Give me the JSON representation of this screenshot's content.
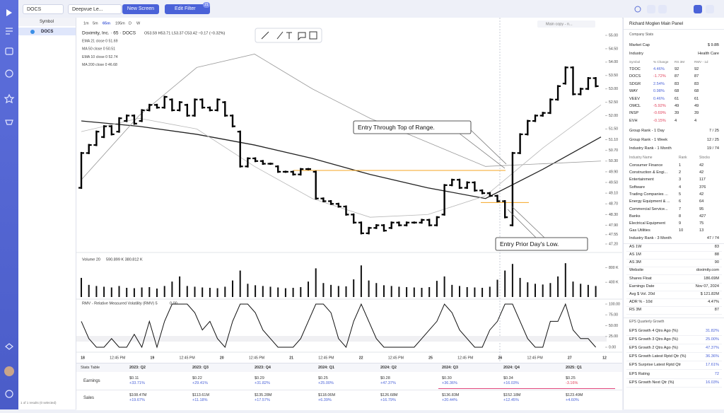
{
  "tabs": {
    "symbol": "DOCS",
    "screen": "Deepvue Le...",
    "new_screen": "New Screen",
    "edit_filter": "Edit Filter",
    "filter_count": "21"
  },
  "watchlist": {
    "header": "Symbol",
    "rows": [
      "DOCS"
    ],
    "footer": "1 of 1 results (0 selected)"
  },
  "chart": {
    "type": "ohlc",
    "timeframes": [
      "1m",
      "5m",
      "65m",
      "195m",
      "D",
      "W"
    ],
    "layout_name": "Main copy - n...",
    "title": "Doximity, Inc. · 65 · DOCS",
    "ohlc": "O53.59 H53.71 L53.37 C53.42 −0.17 (−0.32%)",
    "indicators": [
      "EMA 21 close 0  51.69",
      "MA 50 close 0  50.51",
      "EMA 10 close 0  52.74",
      "MA 200 close 0  46.68"
    ],
    "ylim": [
      47.2,
      55
    ],
    "yticks": [
      {
        "value": 55,
        "label": "55.00"
      },
      {
        "value": 54.5,
        "label": "54.50"
      },
      {
        "value": 54,
        "label": "54.00"
      },
      {
        "value": 53.5,
        "label": "53.50"
      },
      {
        "value": 53,
        "label": "53.00"
      },
      {
        "value": 52.5,
        "label": "52.50"
      },
      {
        "value": 52,
        "label": "52.00"
      },
      {
        "value": 51.5,
        "label": "51.50"
      },
      {
        "value": 51.1,
        "label": "51.10"
      },
      {
        "value": 50.7,
        "label": "50.70"
      },
      {
        "value": 50.3,
        "label": "50.30"
      },
      {
        "value": 49.9,
        "label": "49.90"
      },
      {
        "value": 49.5,
        "label": "49.50"
      },
      {
        "value": 49.1,
        "label": "49.10"
      },
      {
        "value": 48.7,
        "label": "48.70"
      },
      {
        "value": 48.3,
        "label": "48.30"
      },
      {
        "value": 47.9,
        "label": "47.90"
      },
      {
        "value": 47.55,
        "label": "47.55"
      },
      {
        "value": 47.2,
        "label": "47.20"
      }
    ],
    "bars": [
      [
        49.3,
        50.6
      ],
      [
        50.6,
        50.9
      ],
      [
        50.9,
        51.4
      ],
      [
        51.2,
        51.6
      ],
      [
        51.6,
        51.3
      ],
      [
        51.4,
        51.9
      ],
      [
        51.8,
        52.0
      ],
      [
        52.0,
        51.7
      ],
      [
        51.8,
        52.2
      ],
      [
        52.2,
        52.4
      ],
      [
        52.4,
        52.3
      ],
      [
        52.3,
        52.7
      ],
      [
        52.6,
        52.2
      ],
      [
        52.2,
        52.5
      ],
      [
        52.4,
        52.0
      ],
      [
        52.0,
        52.6
      ],
      [
        52.6,
        52.3
      ],
      [
        52.3,
        52.2
      ],
      [
        52.2,
        52.6
      ],
      [
        52.5,
        52.0
      ],
      [
        52.0,
        51.6
      ],
      [
        51.4,
        50.1
      ],
      [
        50.1,
        50.4
      ],
      [
        50.4,
        50.3
      ],
      [
        50.3,
        50.2
      ],
      [
        50.2,
        50.2
      ],
      [
        50.1,
        49.9
      ],
      [
        49.9,
        49.9
      ],
      [
        49.9,
        49.8
      ],
      [
        49.8,
        50.0
      ],
      [
        50.0,
        50.0
      ],
      [
        49.9,
        48.9
      ],
      [
        48.9,
        48.8
      ],
      [
        48.8,
        48.7
      ],
      [
        48.7,
        48.6
      ],
      [
        48.6,
        48.3
      ],
      [
        48.3,
        48.0
      ],
      [
        48.0,
        47.6
      ],
      [
        47.6,
        47.8
      ],
      [
        47.8,
        47.9
      ],
      [
        47.9,
        47.7
      ],
      [
        47.8,
        48.0
      ],
      [
        48.0,
        47.9
      ],
      [
        47.9,
        48.0
      ],
      [
        48.0,
        48.0
      ],
      [
        48.0,
        48.1
      ],
      [
        48.1,
        47.9
      ],
      [
        47.9,
        48.2
      ],
      [
        48.3,
        49.4
      ],
      [
        49.4,
        49.6
      ],
      [
        49.6,
        49.3
      ],
      [
        49.3,
        49.5
      ],
      [
        49.5,
        49.2
      ],
      [
        49.2,
        49.1
      ],
      [
        49.1,
        49.0
      ],
      [
        49.0,
        48.8
      ],
      [
        48.8,
        48.2
      ],
      [
        47.9,
        50.6
      ],
      [
        50.6,
        51.3
      ],
      [
        51.3,
        51.8
      ],
      [
        51.8,
        52.0
      ],
      [
        52.0,
        52.1
      ],
      [
        52.1,
        52.6
      ],
      [
        52.6,
        53.1
      ],
      [
        53.2,
        53.8
      ],
      [
        53.8,
        52.8
      ],
      [
        52.8,
        53.0
      ],
      [
        53.0,
        53.4
      ],
      [
        53.4,
        53.1
      ]
    ],
    "ma_lines": [
      {
        "color": "#222222",
        "width": 1.3,
        "values": [
          51.8,
          51.6,
          51.3,
          50.9,
          50.4,
          49.8,
          49.3,
          48.9,
          50.0,
          51.2
        ]
      },
      {
        "color": "#9a9a9a",
        "width": 0.8,
        "values": [
          49.6,
          52.0,
          53.8,
          54.3,
          53.0,
          51.9,
          51.0,
          50.1,
          50.2,
          50.3
        ]
      },
      {
        "color": "#b8b8b8",
        "width": 0.8,
        "values": [
          51.4,
          51.9,
          51.5,
          50.1,
          48.9,
          48.2,
          48.3,
          49.0,
          50.8,
          52.4
        ]
      }
    ],
    "levels": [
      49.95,
      48.75
    ],
    "annotations": [
      "Entry Through Top of Range.",
      "Entry Prior Day's Low."
    ],
    "x_labels": [
      "18",
      "12:45 PM",
      "19",
      "12:45 PM",
      "20",
      "12:45 PM",
      "21",
      "12:45 PM",
      "22",
      "12:45 PM",
      "25",
      "12:45 PM",
      "26",
      "12:45 PM",
      "27",
      "12"
    ],
    "volume": {
      "label": "Volume 20",
      "values_text": "590.899 K  380.812 K",
      "ylim": [
        0,
        1000
      ],
      "yticks": [
        {
          "value": 800,
          "label": "800 K"
        },
        {
          "value": 400,
          "label": "400 K"
        }
      ],
      "values": [
        520,
        330,
        300,
        280,
        260,
        300,
        250,
        240,
        260,
        270,
        230,
        300,
        420,
        560,
        300,
        280,
        260,
        250,
        240,
        280,
        450,
        720,
        360,
        320,
        300,
        280,
        260,
        240,
        250,
        270,
        420,
        780,
        380,
        330,
        300,
        290,
        480,
        860,
        450,
        380,
        320,
        300,
        280,
        270,
        260,
        250,
        270,
        440,
        560,
        330,
        300,
        270,
        260,
        250,
        280,
        470,
        720,
        900,
        520,
        400,
        360,
        340,
        380,
        560,
        920,
        420,
        360,
        330,
        300
      ]
    },
    "rmv": {
      "label": "RMV - Relative Measured Volatility (RMV) 5",
      "value_text": "0.00",
      "ylim": [
        0,
        100
      ],
      "yticks": [
        {
          "value": 100,
          "label": "100.00"
        },
        {
          "value": 75,
          "label": "75.00"
        },
        {
          "value": 50,
          "label": "50.00"
        },
        {
          "value": 25,
          "label": "25.00"
        },
        {
          "value": 0,
          "label": "0.00"
        }
      ],
      "values": [
        60,
        20,
        0,
        0,
        20,
        0,
        0,
        30,
        0,
        60,
        0,
        60,
        100,
        100,
        100,
        80,
        40,
        60,
        20,
        0,
        60,
        100,
        100,
        80,
        40,
        20,
        0,
        0,
        0,
        20,
        60,
        100,
        100,
        80,
        20,
        0,
        60,
        100,
        60,
        20,
        0,
        0,
        0,
        0,
        0,
        20,
        40,
        60,
        100,
        80,
        40,
        20,
        0,
        0,
        40,
        60,
        100,
        100,
        60,
        20,
        0,
        0,
        60,
        60,
        100,
        40,
        20,
        20,
        0
      ]
    }
  },
  "stats_table": {
    "headers": [
      "Stats Table",
      "2023: Q2",
      "2023: Q3",
      "2023: Q4",
      "2024: Q1",
      "2024: Q2",
      "2024: Q3",
      "2024: Q4",
      "2025: Q1"
    ],
    "rows": [
      {
        "label": "Earnings",
        "cells": [
          [
            "$0.11",
            "+33.71%"
          ],
          [
            "$0.22",
            "+29.41%"
          ],
          [
            "$0.29",
            "+31.82%"
          ],
          [
            "$0.25",
            "+25.00%"
          ],
          [
            "$0.28",
            "+47.37%"
          ],
          [
            "$0.30",
            "+36.36%"
          ],
          [
            "$0.34",
            "+16.03%"
          ],
          [
            "$0.25",
            "-3.16%"
          ]
        ]
      },
      {
        "label": "Sales",
        "cells": [
          [
            "$108.47M",
            "+19.67%"
          ],
          [
            "$113.61M",
            "+11.18%"
          ],
          [
            "$135.28M",
            "+17.57%"
          ],
          [
            "$118.06M",
            "+6.39%"
          ],
          [
            "$126.68M",
            "+16.79%"
          ],
          [
            "$136.83M",
            "+20.44%"
          ],
          [
            "$152.18M",
            "+12.45%"
          ],
          [
            "$123.49M",
            "+4.60%"
          ]
        ]
      }
    ]
  },
  "panel": {
    "title": "Richard Moglen Main Panel",
    "section": "Company Stats",
    "top": [
      [
        "Market Cap",
        "$ 9.8B"
      ],
      [
        "Industry",
        "Health Care"
      ]
    ],
    "peers_header": [
      "Symbol",
      "% Change",
      "RS 3M",
      "RMV - 1d"
    ],
    "peers": [
      [
        "TDOC",
        "4.46%",
        "92",
        "92"
      ],
      [
        "DOCS",
        "-1.72%",
        "87",
        "87"
      ],
      [
        "SDGR",
        "2.54%",
        "83",
        "83"
      ],
      [
        "WAY",
        "0.98%",
        "68",
        "68"
      ],
      [
        "VEEV",
        "0.46%",
        "61",
        "61"
      ],
      [
        "OMCL",
        "-5.92%",
        "49",
        "49"
      ],
      [
        "INSP",
        "-0.69%",
        "39",
        "39"
      ],
      [
        "EVH",
        "-0.15%",
        "4",
        "4"
      ]
    ],
    "ranks": [
      [
        "Group Rank - 1 Day",
        "7 / 25"
      ],
      [
        "Group Rank - 1 Week",
        "12 / 25"
      ],
      [
        "Industry Rank - 1 Month",
        "19 / 74"
      ]
    ],
    "industry_header": [
      "Industry Name",
      "Rank",
      "Stocks"
    ],
    "industries": [
      [
        "Consumer Finance",
        "1",
        "42"
      ],
      [
        "Construction & Engi...",
        "2",
        "42"
      ],
      [
        "Entertainment",
        "3",
        "117"
      ],
      [
        "Software",
        "4",
        "376"
      ],
      [
        "Trading Companies ...",
        "5",
        "42"
      ],
      [
        "Energy Equipment & ...",
        "6",
        "64"
      ],
      [
        "Commercial Service...",
        "7",
        "95"
      ],
      [
        "Banks",
        "8",
        "427"
      ],
      [
        "Electrical Equipment",
        "9",
        "75"
      ],
      [
        "Gas Utilities",
        "10",
        "13"
      ]
    ],
    "rank3m": [
      "Industry Rank - 3 Month",
      "47 / 74"
    ],
    "stats": [
      [
        "AS 1W",
        "83"
      ],
      [
        "AS 1M",
        "88"
      ],
      [
        "AS 3M",
        "90"
      ],
      [
        "Website",
        "doximity.com"
      ],
      [
        "Shares Float",
        "186.69M"
      ],
      [
        "Earnings Date",
        "Nov 07, 2024"
      ],
      [
        "Avg $ Vol. 20d",
        "$ 121.82M"
      ],
      [
        "ADR % - 10d",
        "4.47%"
      ],
      [
        "RS 3M",
        "87"
      ]
    ],
    "eps_section": "EPS Quarterly Growth",
    "eps": [
      [
        "EPS Growth 4 Qtrs Ago (%)",
        "31.82%"
      ],
      [
        "EPS Growth 3 Qtrs Ago (%)",
        "25.00%"
      ],
      [
        "EPS Growth 2 Qtrs Ago (%)",
        "47.37%"
      ],
      [
        "EPS Growth Latest Rptd Qtr (%)",
        "36.36%"
      ],
      [
        "EPS Surprise Latest Rptd Qtr",
        "17.61%"
      ],
      [
        "EPS Rating",
        "72"
      ],
      [
        "EPS Growth Next Qtr (%)",
        "16.03%"
      ]
    ]
  }
}
